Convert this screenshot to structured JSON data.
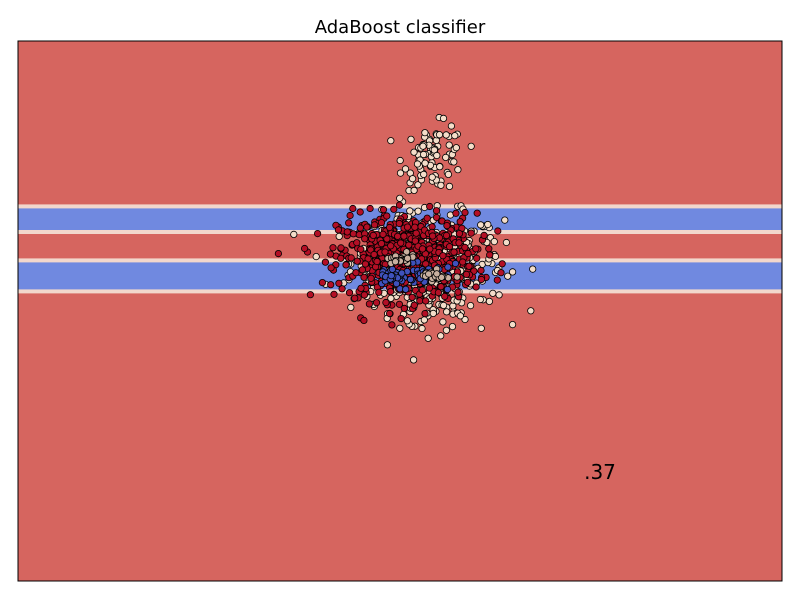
{
  "chart_data": {
    "type": "scatter",
    "title": "AdaBoost classifier",
    "xlabel": "",
    "ylabel": "",
    "ticks": "none",
    "xlim": [
      -1.0,
      1.0
    ],
    "ylim": [
      -1.0,
      1.0
    ],
    "background_region_color": "#d6655f",
    "decision_bands": [
      {
        "y_range": [
          0.3,
          0.38
        ],
        "color": "#7089e0"
      },
      {
        "y_range": [
          0.08,
          0.18
        ],
        "color": "#7089e0"
      }
    ],
    "annotation": ".37",
    "series": [
      {
        "class": 0,
        "color": "#f4ddc9",
        "clusters": [
          {
            "cx": 0.07,
            "cy": 0.18,
            "sx": 0.1,
            "sy": 0.09,
            "n": 420
          },
          {
            "cx": 0.09,
            "cy": 0.57,
            "sx": 0.04,
            "sy": 0.06,
            "n": 90
          },
          {
            "cx": 0.07,
            "cy": 0.02,
            "sx": 0.06,
            "sy": 0.05,
            "n": 60
          }
        ]
      },
      {
        "class": 1,
        "color": "#b40f25",
        "clusters": [
          {
            "cx": 0.02,
            "cy": 0.2,
            "sx": 0.09,
            "sy": 0.08,
            "n": 650
          }
        ]
      },
      {
        "class": 2,
        "color": "#3f52bd",
        "clusters": [
          {
            "cx": 0.0,
            "cy": 0.13,
            "sx": 0.04,
            "sy": 0.02,
            "n": 40
          },
          {
            "cx": 0.08,
            "cy": 0.13,
            "sx": 0.04,
            "sy": 0.02,
            "n": 25
          }
        ]
      },
      {
        "class": 3,
        "color": "#c9b09f",
        "clusters": [
          {
            "cx": 0.0,
            "cy": 0.19,
            "sx": 0.02,
            "sy": 0.01,
            "n": 30
          },
          {
            "cx": 0.09,
            "cy": 0.13,
            "sx": 0.02,
            "sy": 0.01,
            "n": 20
          }
        ]
      }
    ]
  }
}
